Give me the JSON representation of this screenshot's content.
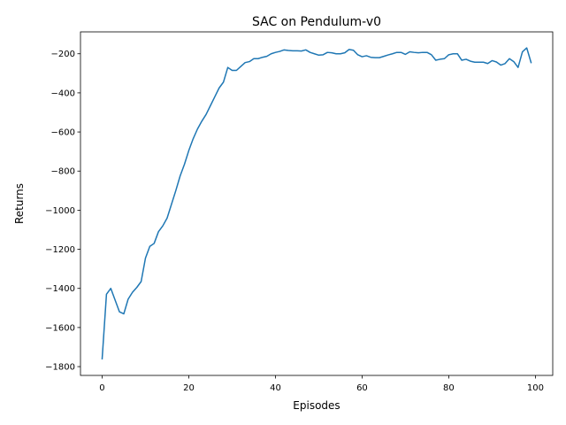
{
  "chart_data": {
    "type": "line",
    "title": "SAC  on Pendulum-v0",
    "xlabel": "Episodes",
    "ylabel": "Returns",
    "xlim": [
      -5,
      104
    ],
    "ylim": [
      -1845,
      -88
    ],
    "xticks": [
      0,
      20,
      40,
      60,
      80,
      100
    ],
    "yticks": [
      -1800,
      -1600,
      -1400,
      -1200,
      -1000,
      -800,
      -600,
      -400,
      -200
    ],
    "grid": false,
    "line_color": "#1f77b4",
    "series": [
      {
        "name": "Returns",
        "x": [
          0,
          1,
          2,
          3,
          4,
          5,
          6,
          7,
          8,
          9,
          10,
          11,
          12,
          13,
          14,
          15,
          16,
          17,
          18,
          19,
          20,
          21,
          22,
          23,
          24,
          25,
          26,
          27,
          28,
          29,
          30,
          31,
          32,
          33,
          34,
          35,
          36,
          37,
          38,
          39,
          40,
          41,
          42,
          43,
          44,
          45,
          46,
          47,
          48,
          49,
          50,
          51,
          52,
          53,
          54,
          55,
          56,
          57,
          58,
          59,
          60,
          61,
          62,
          63,
          64,
          65,
          66,
          67,
          68,
          69,
          70,
          71,
          72,
          73,
          74,
          75,
          76,
          77,
          78,
          79,
          80,
          81,
          82,
          83,
          84,
          85,
          86,
          87,
          88,
          89,
          90,
          91,
          92,
          93,
          94,
          95,
          96,
          97,
          98,
          99
        ],
        "values": [
          -1760,
          -1430,
          -1400,
          -1460,
          -1520,
          -1530,
          -1455,
          -1420,
          -1395,
          -1365,
          -1245,
          -1185,
          -1170,
          -1110,
          -1080,
          -1040,
          -970,
          -900,
          -825,
          -765,
          -695,
          -635,
          -585,
          -545,
          -510,
          -465,
          -420,
          -375,
          -345,
          -270,
          -285,
          -285,
          -265,
          -245,
          -240,
          -225,
          -225,
          -218,
          -213,
          -200,
          -193,
          -188,
          -180,
          -183,
          -185,
          -185,
          -186,
          -180,
          -193,
          -200,
          -207,
          -205,
          -193,
          -195,
          -200,
          -200,
          -195,
          -178,
          -182,
          -205,
          -215,
          -210,
          -218,
          -220,
          -220,
          -213,
          -206,
          -200,
          -193,
          -193,
          -203,
          -190,
          -193,
          -195,
          -193,
          -193,
          -205,
          -233,
          -228,
          -225,
          -205,
          -200,
          -200,
          -233,
          -228,
          -238,
          -243,
          -243,
          -243,
          -250,
          -235,
          -242,
          -258,
          -250,
          -225,
          -240,
          -270,
          -190,
          -170,
          -245
        ]
      }
    ]
  }
}
